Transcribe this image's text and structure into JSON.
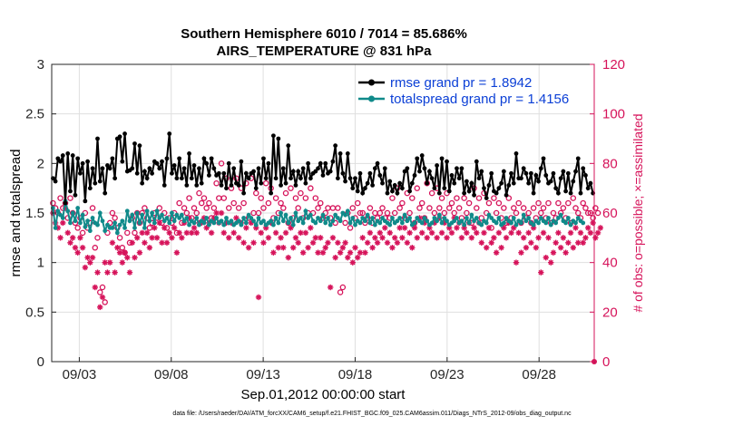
{
  "chart_data": {
    "type": "line",
    "title_line1": "Southern Hemisphere 6010 / 7014 = 85.686%",
    "title_line2": "AIRS_TEMPERATURE @ 831 hPa",
    "ylabel_left": "rmse and totalspread",
    "ylabel_right": "# of obs: o=possible; ×=assimilated",
    "xlabel": "Sep.01,2012 00:00:00 start",
    "footer": "data file: /Users/raeder/DAI/ATM_forcXX/CAM6_setup/f.e21.FHIST_BGC.f09_025.CAM6assim.011/Diags_NTrS_2012-09/obs_diag_output.nc",
    "xlim": [
      1.5,
      31
    ],
    "ylim_left": [
      0,
      3
    ],
    "ylim_right": [
      0,
      120
    ],
    "xticks": [
      {
        "value": 3,
        "label": "09/03"
      },
      {
        "value": 8,
        "label": "09/08"
      },
      {
        "value": 13,
        "label": "09/13"
      },
      {
        "value": 18,
        "label": "09/18"
      },
      {
        "value": 23,
        "label": "09/23"
      },
      {
        "value": 28,
        "label": "09/28"
      }
    ],
    "yticks_left": [
      "0",
      "0.5",
      "1",
      "1.5",
      "2",
      "2.5",
      "3"
    ],
    "yticks_right": [
      "0",
      "20",
      "40",
      "60",
      "80",
      "100",
      "120"
    ],
    "grid": true,
    "legend_position": "top-right",
    "colors": {
      "rmse": "#000000",
      "totalspread": "#108a8a",
      "obs": "#d6135a",
      "legend_text": "#0b3fd6"
    },
    "series": [
      {
        "name": "rmse grand pr = 1.8942",
        "axis": "left",
        "values": [
          1.85,
          1.82,
          2.05,
          2.02,
          2.08,
          1.6,
          2.1,
          1.72,
          2.08,
          1.68,
          2.05,
          1.9,
          2.0,
          1.62,
          2.02,
          1.75,
          1.95,
          1.8,
          2.25,
          1.82,
          1.95,
          1.7,
          1.98,
          1.95,
          2.05,
          1.85,
          2.25,
          2.27,
          2.02,
          2.3,
          1.92,
          1.93,
          1.95,
          2.2,
          1.9,
          2.18,
          1.8,
          1.92,
          1.85,
          1.95,
          1.9,
          2.02,
          2.0,
          1.95,
          2.02,
          1.78,
          2.05,
          2.3,
          1.9,
          1.98,
          1.85,
          2.05,
          1.85,
          1.95,
          1.78,
          2.1,
          1.85,
          1.98,
          1.78,
          1.95,
          1.8,
          2.05,
          2.0,
          1.88,
          2.05,
          1.95,
          1.88,
          1.9,
          1.78,
          1.9,
          1.75,
          2.0,
          1.78,
          1.95,
          1.8,
          1.78,
          2.02,
          1.7,
          1.9,
          1.85,
          1.9,
          1.92,
          1.75,
          1.95,
          1.8,
          2.05,
          1.85,
          2.0,
          1.7,
          2.28,
          1.85,
          2.25,
          1.78,
          1.95,
          1.8,
          2.18,
          1.85,
          1.92,
          1.78,
          1.92,
          1.85,
          1.95,
          1.8,
          2.0,
          1.85,
          1.9,
          1.92,
          1.95,
          2.0,
          1.88,
          2.0,
          1.9,
          1.92,
          2.02,
          2.18,
          1.85,
          2.1,
          1.9,
          1.82,
          2.1,
          1.85,
          1.75,
          1.85,
          1.72,
          1.9,
          1.7,
          1.75,
          1.8,
          1.9,
          1.78,
          1.95,
          2.0,
          1.88,
          1.8,
          1.95,
          1.7,
          1.82,
          1.72,
          1.78,
          1.7,
          1.8,
          1.75,
          1.92,
          1.95,
          1.72,
          1.8,
          1.88,
          2.05,
          1.92,
          2.08,
          1.95,
          1.8,
          1.92,
          1.85,
          1.75,
          1.98,
          1.7,
          2.05,
          1.75,
          2.02,
          1.72,
          1.88,
          1.8,
          1.95,
          1.85,
          1.95,
          1.7,
          1.82,
          1.72,
          1.8,
          1.68,
          2.02,
          1.85,
          1.92,
          1.75,
          1.65,
          1.78,
          1.9,
          1.72,
          1.7,
          1.75,
          1.8,
          1.92,
          1.68,
          1.78,
          1.9,
          1.8,
          2.1,
          1.85,
          1.85,
          1.95,
          1.9,
          1.8,
          1.9,
          1.7,
          1.88,
          1.82,
          1.95,
          2.05,
          1.88,
          1.8,
          1.82,
          1.9,
          1.75,
          1.7,
          1.85,
          1.92,
          1.72,
          1.9,
          1.7,
          1.82,
          1.92,
          2.05,
          1.7,
          1.95,
          1.88,
          1.75,
          1.8,
          1.7
        ]
      },
      {
        "name": "totalspread grand pr = 1.4156",
        "axis": "left",
        "values": [
          1.55,
          1.35,
          1.52,
          1.48,
          1.45,
          1.62,
          1.52,
          1.4,
          1.5,
          1.42,
          1.55,
          1.4,
          1.48,
          1.36,
          1.42,
          1.32,
          1.45,
          1.4,
          1.38,
          1.5,
          1.42,
          1.32,
          1.38,
          1.35,
          1.35,
          1.4,
          1.3,
          1.38,
          1.42,
          1.35,
          1.52,
          1.42,
          1.48,
          1.35,
          1.5,
          1.4,
          1.48,
          1.35,
          1.52,
          1.42,
          1.5,
          1.4,
          1.52,
          1.45,
          1.48,
          1.42,
          1.45,
          1.4,
          1.5,
          1.42,
          1.48,
          1.45,
          1.48,
          1.42,
          1.45,
          1.38,
          1.42,
          1.4,
          1.45,
          1.38,
          1.42,
          1.4,
          1.45,
          1.38,
          1.42,
          1.4,
          1.45,
          1.4,
          1.42,
          1.38,
          1.45,
          1.4,
          1.42,
          1.38,
          1.4,
          1.42,
          1.38,
          1.45,
          1.4,
          1.48,
          1.45,
          1.42,
          1.38,
          1.45,
          1.4,
          1.42,
          1.38,
          1.4,
          1.42,
          1.38,
          1.45,
          1.4,
          1.5,
          1.42,
          1.48,
          1.4,
          1.45,
          1.38,
          1.5,
          1.42,
          1.45,
          1.4,
          1.52,
          1.45,
          1.48,
          1.42,
          1.4,
          1.45,
          1.42,
          1.48,
          1.4,
          1.45,
          1.38,
          1.42,
          1.48,
          1.45,
          1.42,
          1.5,
          1.48,
          1.52,
          1.4,
          1.45,
          1.38,
          1.42,
          1.4,
          1.45,
          1.42,
          1.48,
          1.4,
          1.45,
          1.38,
          1.42,
          1.4,
          1.45,
          1.42,
          1.4,
          1.38,
          1.45,
          1.4,
          1.42,
          1.45,
          1.4,
          1.48,
          1.42,
          1.45,
          1.38,
          1.4,
          1.45,
          1.42,
          1.4,
          1.45,
          1.42,
          1.38,
          1.4,
          1.45,
          1.42,
          1.48,
          1.4,
          1.45,
          1.42,
          1.38,
          1.4,
          1.42,
          1.45,
          1.4,
          1.42,
          1.38,
          1.45,
          1.4,
          1.48,
          1.42,
          1.45,
          1.4,
          1.38,
          1.42,
          1.4,
          1.48,
          1.45,
          1.42,
          1.4,
          1.45,
          1.38,
          1.4,
          1.45,
          1.42,
          1.4,
          1.45,
          1.38,
          1.42,
          1.4,
          1.48,
          1.42,
          1.45,
          1.4,
          1.38,
          1.42,
          1.4,
          1.45,
          1.42,
          1.4,
          1.45,
          1.38,
          1.42,
          1.4,
          1.45,
          1.48,
          1.42,
          1.4,
          1.45,
          1.38,
          1.42,
          1.4,
          1.45,
          1.42,
          1.4
        ]
      },
      {
        "name": "possible",
        "axis": "right",
        "marker": "circle",
        "values": [
          64,
          62,
          60,
          66,
          62,
          64,
          58,
          66,
          60,
          56,
          54,
          58,
          52,
          60,
          54,
          56,
          62,
          46,
          50,
          28,
          30,
          24,
          52,
          56,
          60,
          58,
          54,
          50,
          46,
          44,
          52,
          48,
          58,
          52,
          60,
          56,
          60,
          62,
          58,
          54,
          56,
          60,
          58,
          62,
          56,
          60,
          54,
          58,
          56,
          60,
          52,
          64,
          56,
          62,
          60,
          66,
          58,
          62,
          60,
          68,
          64,
          66,
          62,
          64,
          58,
          62,
          72,
          66,
          80,
          66,
          74,
          62,
          70,
          64,
          74,
          62,
          70,
          64,
          72,
          58,
          74,
          60,
          68,
          60,
          66,
          62,
          72,
          64,
          70,
          58,
          66,
          60,
          64,
          62,
          68,
          56,
          70,
          58,
          66,
          62,
          68,
          58,
          66,
          60,
          70,
          60,
          66,
          62,
          64,
          58,
          60,
          62,
          58,
          62,
          56,
          62,
          28,
          30,
          56,
          60,
          54,
          62,
          58,
          64,
          60,
          60,
          56,
          58,
          62,
          56,
          60,
          58,
          60,
          62,
          58,
          60,
          58,
          66,
          60,
          70,
          62,
          64,
          58,
          68,
          60,
          66,
          56,
          70,
          62,
          64,
          58,
          72,
          62,
          68,
          60,
          70,
          62,
          66,
          60,
          68,
          62,
          64,
          60,
          66,
          62,
          58,
          66,
          60,
          64,
          56,
          70,
          62,
          66,
          58,
          68,
          60,
          64,
          54,
          66,
          60,
          64,
          58,
          62,
          56,
          66,
          58,
          62,
          60,
          64,
          56,
          62,
          58,
          60,
          56,
          62,
          58,
          64,
          60,
          62,
          58,
          64,
          56,
          60,
          58,
          64,
          60,
          62,
          58,
          64,
          56,
          66,
          62,
          60,
          58,
          64,
          62,
          60,
          60,
          58,
          62,
          60
        ]
      },
      {
        "name": "assimilated",
        "axis": "right",
        "marker": "asterisk",
        "values": [
          60,
          56,
          54,
          50,
          56,
          62,
          52,
          48,
          50,
          46,
          44,
          50,
          46,
          38,
          42,
          40,
          42,
          30,
          36,
          22,
          26,
          40,
          36,
          40,
          48,
          36,
          46,
          44,
          40,
          44,
          42,
          36,
          48,
          42,
          50,
          44,
          52,
          48,
          52,
          46,
          50,
          54,
          50,
          56,
          48,
          54,
          48,
          52,
          50,
          54,
          44,
          52,
          50,
          56,
          52,
          58,
          52,
          54,
          52,
          56,
          56,
          58,
          54,
          56,
          52,
          58,
          60,
          56,
          60,
          52,
          56,
          50,
          56,
          52,
          58,
          50,
          56,
          48,
          54,
          46,
          56,
          48,
          54,
          26,
          52,
          48,
          54,
          50,
          56,
          44,
          52,
          46,
          50,
          46,
          52,
          42,
          54,
          46,
          50,
          48,
          52,
          44,
          52,
          46,
          54,
          48,
          50,
          44,
          50,
          44,
          46,
          48,
          30,
          50,
          42,
          48,
          44,
          46,
          48,
          42,
          44,
          40,
          46,
          42,
          44,
          50,
          44,
          48,
          52,
          46,
          50,
          48,
          52,
          50,
          54,
          48,
          52,
          46,
          50,
          48,
          54,
          50,
          54,
          48,
          52,
          46,
          54,
          50,
          58,
          52,
          56,
          50,
          54,
          52,
          56,
          50,
          58,
          52,
          56,
          50,
          54,
          52,
          58,
          54,
          56,
          50,
          54,
          52,
          56,
          50,
          54,
          52,
          56,
          48,
          52,
          46,
          54,
          48,
          50,
          44,
          52,
          46,
          54,
          50,
          56,
          52,
          54,
          40,
          52,
          44,
          50,
          46,
          52,
          48,
          54,
          46,
          50,
          36,
          52,
          42,
          50,
          40,
          44,
          48,
          52,
          46,
          50,
          44,
          48,
          52,
          46,
          54,
          48,
          52,
          48,
          50,
          54,
          52,
          56,
          50,
          52,
          54
        ]
      }
    ]
  }
}
